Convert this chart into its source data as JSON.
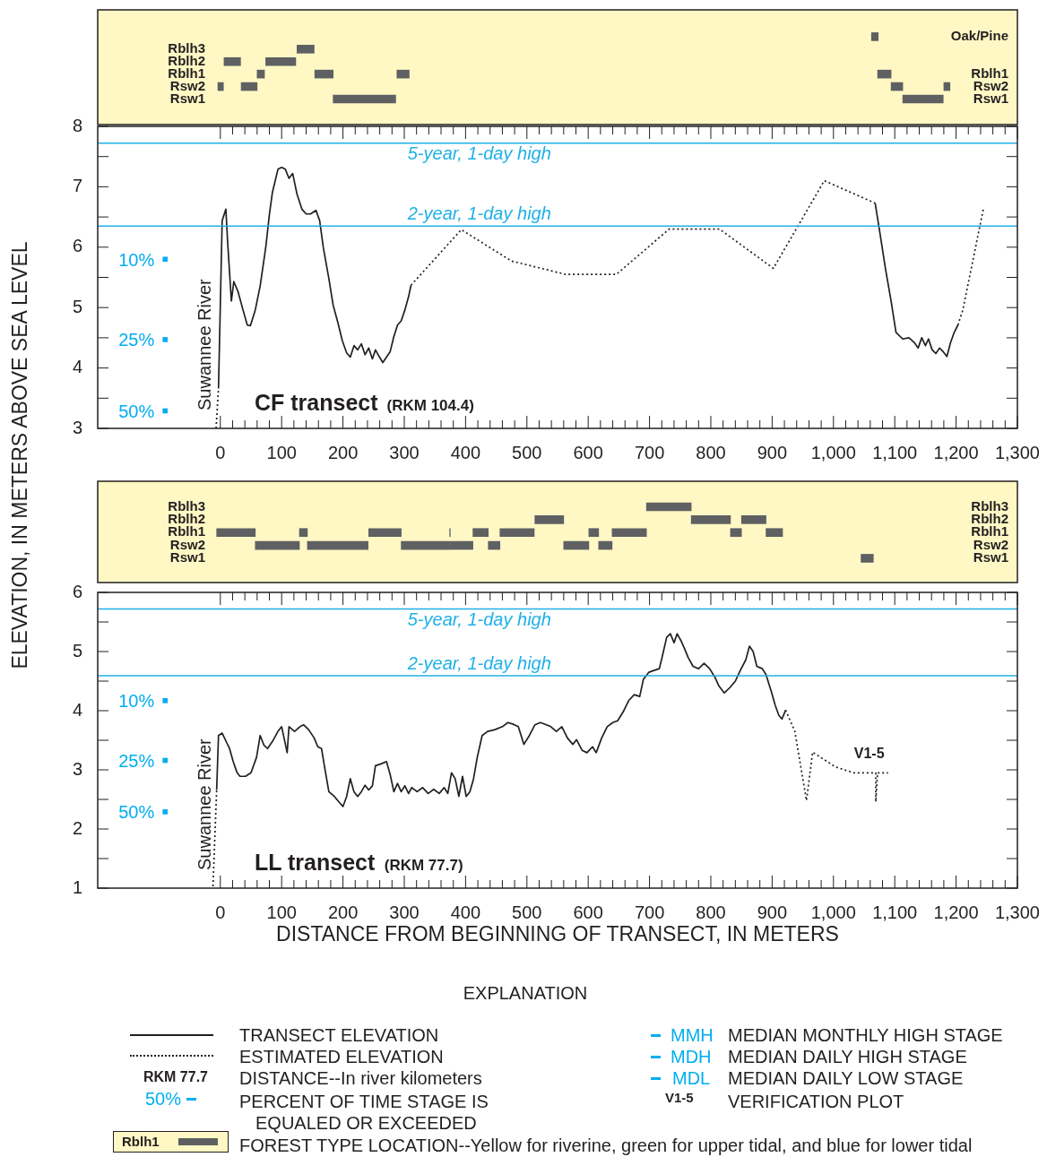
{
  "chart_data": [
    {
      "type": "bar",
      "orientation": "horizontal",
      "categories": [
        null,
        "Rblh3",
        "Rblh2",
        "Rblh1",
        "Rsw2",
        "Rsw1"
      ],
      "y2_categories": [
        "Oak/Pine",
        null,
        null,
        "Rblh1",
        "Rsw2",
        "Rsw1"
      ],
      "series": [
        {
          "color": "#5f6062",
          "base": [
            1062,
            125,
            6,
            60,
            -4,
            184
          ],
          "values": [
            11,
            28,
            27,
            12,
            9,
            102
          ]
        },
        {
          "color": "#5f6062",
          "base": [
            null,
            null,
            74,
            154,
            34,
            1113
          ],
          "values": [
            null,
            null,
            49,
            30,
            26,
            66
          ]
        },
        {
          "color": "#5f6062",
          "base": [
            null,
            null,
            null,
            288,
            1094,
            null
          ],
          "values": [
            null,
            null,
            null,
            20,
            19,
            null
          ]
        },
        {
          "color": "#5f6062",
          "base": [
            null,
            null,
            null,
            1072,
            1180,
            null
          ],
          "values": [
            null,
            null,
            null,
            22,
            10,
            null
          ]
        }
      ],
      "xlim": [
        -200,
        1300
      ],
      "tick_labels": "y"
    },
    {
      "type": "line",
      "title": "CF transect",
      "subtitle": "(RKM 104.4)",
      "ylabel": "ELEVATION, IN METERS ABOVE SEA LEVEL",
      "series": [
        {
          "color": "#231f20",
          "line_style": "dotted",
          "x": [
            -7,
            -3
          ],
          "values": [
            3.0,
            3.66
          ]
        },
        {
          "color": "#231f20",
          "line_style": "solid",
          "x": [
            -3,
            3,
            9,
            12,
            18,
            22,
            29,
            37,
            44,
            49,
            57,
            65,
            74,
            80,
            85,
            94,
            100,
            106,
            112,
            118,
            125,
            133,
            140,
            147,
            156,
            162,
            168,
            177,
            184,
            192,
            199,
            206,
            212,
            218,
            224,
            230,
            236,
            242,
            248,
            253,
            259,
            265,
            271,
            277,
            283,
            289,
            295,
            301,
            307,
            311
          ],
          "values": [
            3.66,
            6.44,
            6.63,
            6.07,
            5.11,
            5.43,
            5.26,
            4.96,
            4.71,
            4.7,
            4.96,
            5.36,
            5.99,
            6.54,
            6.91,
            7.29,
            7.32,
            7.29,
            7.14,
            7.22,
            6.88,
            6.63,
            6.55,
            6.55,
            6.61,
            6.44,
            5.99,
            5.48,
            5.04,
            4.74,
            4.45,
            4.25,
            4.18,
            4.37,
            4.3,
            4.4,
            4.22,
            4.33,
            4.15,
            4.3,
            4.19,
            4.09,
            4.18,
            4.27,
            4.52,
            4.71,
            4.78,
            4.96,
            5.18,
            5.37
          ]
        },
        {
          "color": "#231f20",
          "line_style": "dotted",
          "x": [
            311,
            393,
            475,
            563,
            646,
            732,
            814,
            902,
            985,
            1068
          ],
          "values": [
            5.37,
            6.29,
            5.77,
            5.55,
            5.55,
            6.3,
            6.3,
            5.65,
            7.1,
            6.73
          ]
        },
        {
          "color": "#231f20",
          "line_style": "solid",
          "x": [
            1068,
            1076,
            1085,
            1094,
            1102,
            1113,
            1123,
            1132,
            1138,
            1144,
            1150,
            1155,
            1161,
            1167,
            1173,
            1179,
            1185,
            1191,
            1197,
            1203
          ],
          "values": [
            6.73,
            6.22,
            5.63,
            5.11,
            4.59,
            4.48,
            4.5,
            4.42,
            4.33,
            4.5,
            4.37,
            4.48,
            4.3,
            4.24,
            4.33,
            4.27,
            4.19,
            4.42,
            4.59,
            4.71
          ]
        },
        {
          "color": "#231f20",
          "line_style": "dotted",
          "x": [
            1203,
            1211,
            1245
          ],
          "values": [
            4.71,
            4.96,
            6.66
          ]
        },
        {
          "type": "scatter",
          "name": "10%",
          "color": "#00aeef",
          "x": [
            -90
          ],
          "values": [
            5.8
          ]
        },
        {
          "type": "scatter",
          "name": "25%",
          "color": "#00aeef",
          "x": [
            -90
          ],
          "values": [
            4.47
          ]
        },
        {
          "type": "scatter",
          "name": "50%",
          "color": "#00aeef",
          "x": [
            -90
          ],
          "values": [
            3.29
          ]
        }
      ],
      "ref_lines": [
        {
          "axis": "y",
          "value": 7.72,
          "label": "5-year, 1-day high",
          "color": "#1fb0e6"
        },
        {
          "axis": "y",
          "value": 6.35,
          "label": "2-year, 1-day high",
          "color": "#1fb0e6"
        }
      ],
      "annotations": [
        "Suwannee River"
      ],
      "xlim": [
        -200,
        1300
      ],
      "xticks": [
        0,
        {
          "value": 20,
          "label": null
        },
        {
          "value": 40,
          "label": null
        },
        {
          "value": 60,
          "label": null
        },
        {
          "value": 80,
          "label": null
        },
        100,
        {
          "value": 120,
          "label": null
        },
        {
          "value": 140,
          "label": null
        },
        {
          "value": 160,
          "label": null
        },
        {
          "value": 180,
          "label": null
        },
        200,
        {
          "value": 220,
          "label": null
        },
        {
          "value": 240,
          "label": null
        },
        {
          "value": 260,
          "label": null
        },
        {
          "value": 280,
          "label": null
        },
        300,
        {
          "value": 320,
          "label": null
        },
        {
          "value": 340,
          "label": null
        },
        {
          "value": 360,
          "label": null
        },
        {
          "value": 380,
          "label": null
        },
        400,
        {
          "value": 420,
          "label": null
        },
        {
          "value": 440,
          "label": null
        },
        {
          "value": 460,
          "label": null
        },
        {
          "value": 480,
          "label": null
        },
        500,
        {
          "value": 520,
          "label": null
        },
        {
          "value": 540,
          "label": null
        },
        {
          "value": 560,
          "label": null
        },
        {
          "value": 580,
          "label": null
        },
        600,
        {
          "value": 620,
          "label": null
        },
        {
          "value": 640,
          "label": null
        },
        {
          "value": 660,
          "label": null
        },
        {
          "value": 680,
          "label": null
        },
        700,
        {
          "value": 720,
          "label": null
        },
        {
          "value": 740,
          "label": null
        },
        {
          "value": 760,
          "label": null
        },
        {
          "value": 780,
          "label": null
        },
        800,
        {
          "value": 820,
          "label": null
        },
        {
          "value": 840,
          "label": null
        },
        {
          "value": 860,
          "label": null
        },
        {
          "value": 880,
          "label": null
        },
        900,
        {
          "value": 920,
          "label": null
        },
        {
          "value": 940,
          "label": null
        },
        {
          "value": 960,
          "label": null
        },
        {
          "value": 980,
          "label": null
        },
        {
          "value": 1000,
          "label": "1,000"
        },
        {
          "value": 1020,
          "label": null
        },
        {
          "value": 1040,
          "label": null
        },
        {
          "value": 1060,
          "label": null
        },
        {
          "value": 1080,
          "label": null
        },
        {
          "value": 1100,
          "label": "1,100"
        },
        {
          "value": 1120,
          "label": null
        },
        {
          "value": 1140,
          "label": null
        },
        {
          "value": 1160,
          "label": null
        },
        {
          "value": 1180,
          "label": null
        },
        {
          "value": 1200,
          "label": "1,200"
        },
        {
          "value": 1220,
          "label": null
        },
        {
          "value": 1240,
          "label": null
        },
        {
          "value": 1260,
          "label": null
        },
        {
          "value": 1280,
          "label": null
        },
        {
          "value": 1300,
          "label": "1,300"
        }
      ],
      "ylim": [
        3,
        8
      ],
      "yticks": [
        3,
        {
          "value": 3.5,
          "label": null
        },
        4,
        {
          "value": 4.5,
          "label": null
        },
        5,
        {
          "value": 5.5,
          "label": null
        },
        6,
        {
          "value": 6.5,
          "label": null
        },
        7,
        {
          "value": 7.5,
          "label": null
        },
        8
      ]
    },
    {
      "type": "bar",
      "orientation": "horizontal",
      "categories": [
        "Rblh3",
        "Rblh2",
        "Rblh1",
        "Rsw2",
        "Rsw1"
      ],
      "y2_categories": [
        "Rblh3",
        "Rblh2",
        "Rblh1",
        "Rsw2",
        "Rsw1"
      ],
      "series": [
        {
          "color": "#5f6062",
          "base": [
            695,
            513,
            -6,
            57,
            1045
          ],
          "values": [
            73,
            47,
            63,
            72,
            20
          ]
        },
        {
          "color": "#5f6062",
          "base": [
            null,
            768,
            129,
            142,
            null
          ],
          "values": [
            null,
            64,
            13,
            99,
            null
          ]
        },
        {
          "color": "#5f6062",
          "base": [
            null,
            850,
            242,
            295,
            null
          ],
          "values": [
            null,
            40,
            53,
            79,
            null
          ]
        },
        {
          "color": "#5f6062",
          "base": [
            null,
            null,
            374,
            375,
            null
          ],
          "values": [
            null,
            null,
            1,
            37,
            null
          ]
        },
        {
          "color": "#5f6062",
          "base": [
            null,
            null,
            412,
            437,
            null
          ],
          "values": [
            null,
            null,
            25,
            19,
            null
          ]
        },
        {
          "color": "#5f6062",
          "base": [
            null,
            null,
            456,
            560,
            null
          ],
          "values": [
            null,
            null,
            56,
            41,
            null
          ]
        },
        {
          "color": "#5f6062",
          "base": [
            null,
            null,
            601,
            617,
            null
          ],
          "values": [
            null,
            null,
            16,
            22,
            null
          ]
        },
        {
          "color": "#5f6062",
          "base": [
            null,
            null,
            639,
            null,
            null
          ],
          "values": [
            null,
            null,
            56,
            null,
            null
          ]
        },
        {
          "color": "#5f6062",
          "base": [
            null,
            null,
            832,
            null,
            null
          ],
          "values": [
            null,
            null,
            18,
            null,
            null
          ]
        },
        {
          "color": "#5f6062",
          "base": [
            null,
            null,
            890,
            null,
            null
          ],
          "values": [
            null,
            null,
            27,
            null,
            null
          ]
        }
      ],
      "xlim": [
        -200,
        1300
      ],
      "tick_labels": "y"
    },
    {
      "type": "line",
      "title": "LL transect",
      "subtitle": "(RKM 77.7)",
      "xlabel": "DISTANCE FROM BEGINNING OF TRANSECT, IN METERS",
      "series": [
        {
          "color": "#231f20",
          "line_style": "dotted",
          "x": [
            -12,
            -6
          ],
          "values": [
            1.03,
            2.66
          ]
        },
        {
          "color": "#231f20",
          "line_style": "solid",
          "x": [
            -6,
            -3,
            3,
            15,
            21,
            27,
            32,
            41,
            50,
            59,
            65,
            71,
            77,
            85,
            94,
            100,
            109,
            112,
            121,
            130,
            136,
            144,
            153,
            159,
            165,
            171,
            177,
            186,
            194,
            200,
            206,
            212,
            218,
            224,
            230,
            236,
            242,
            248,
            253,
            262,
            271,
            277,
            283,
            289,
            295,
            301,
            307,
            312,
            321,
            330,
            339,
            348,
            357,
            365,
            371,
            377,
            383,
            389,
            395,
            401,
            407,
            413,
            419,
            427,
            436,
            448,
            460,
            469,
            478,
            486,
            495,
            504,
            513,
            522,
            530,
            539,
            548,
            557,
            566,
            575,
            581,
            590,
            598,
            607,
            613,
            622,
            631,
            640,
            648,
            657,
            666,
            675,
            684,
            690,
            699,
            707,
            716,
            722,
            728,
            734,
            740,
            745,
            751,
            757,
            763,
            771,
            780,
            789,
            798,
            807,
            813,
            822,
            831,
            840,
            848,
            857,
            863,
            869,
            875,
            884,
            890,
            899,
            905,
            911,
            916,
            922
          ],
          "values": [
            2.66,
            3.58,
            3.62,
            3.36,
            3.14,
            2.96,
            2.89,
            2.89,
            2.95,
            3.21,
            3.58,
            3.42,
            3.36,
            3.48,
            3.65,
            3.73,
            3.29,
            3.73,
            3.65,
            3.73,
            3.76,
            3.68,
            3.54,
            3.39,
            3.36,
            2.99,
            2.63,
            2.55,
            2.45,
            2.38,
            2.55,
            2.85,
            2.63,
            2.55,
            2.63,
            2.74,
            2.66,
            2.73,
            3.07,
            3.1,
            3.14,
            2.92,
            2.63,
            2.77,
            2.63,
            2.73,
            2.6,
            2.7,
            2.63,
            2.7,
            2.6,
            2.67,
            2.6,
            2.7,
            2.6,
            2.95,
            2.85,
            2.55,
            2.89,
            2.55,
            2.63,
            2.85,
            3.21,
            3.58,
            3.65,
            3.68,
            3.73,
            3.8,
            3.77,
            3.73,
            3.43,
            3.58,
            3.76,
            3.8,
            3.77,
            3.73,
            3.65,
            3.73,
            3.54,
            3.43,
            3.51,
            3.33,
            3.29,
            3.39,
            3.29,
            3.54,
            3.73,
            3.8,
            3.83,
            3.98,
            4.17,
            4.27,
            4.24,
            4.53,
            4.65,
            4.68,
            4.71,
            4.97,
            5.24,
            5.3,
            5.15,
            5.3,
            5.19,
            5.05,
            4.9,
            4.75,
            4.71,
            4.8,
            4.71,
            4.56,
            4.42,
            4.3,
            4.39,
            4.5,
            4.68,
            4.86,
            5.09,
            5.0,
            4.75,
            4.71,
            4.61,
            4.31,
            4.09,
            3.92,
            3.86,
            4.01
          ]
        },
        {
          "name": "V1-5",
          "color": "#231f20",
          "line_style": "dotted",
          "x": [
            922,
            937,
            956,
            966,
            1003,
            1033,
            1069,
            1069,
            1072,
            1089
          ],
          "values": [
            4.01,
            3.65,
            2.48,
            3.3,
            3.05,
            2.95,
            2.95,
            2.46,
            2.95,
            2.95
          ]
        },
        {
          "type": "scatter",
          "name": "10%",
          "color": "#00aeef",
          "x": [
            -90
          ],
          "values": [
            4.17
          ]
        },
        {
          "type": "scatter",
          "name": "25%",
          "color": "#00aeef",
          "x": [
            -90
          ],
          "values": [
            3.16
          ]
        },
        {
          "type": "scatter",
          "name": "50%",
          "color": "#00aeef",
          "x": [
            -90
          ],
          "values": [
            2.29
          ]
        }
      ],
      "ref_lines": [
        {
          "axis": "y",
          "value": 5.72,
          "label": "5-year, 1-day high",
          "color": "#1fb0e6"
        },
        {
          "axis": "y",
          "value": 4.59,
          "label": "2-year, 1-day high",
          "color": "#1fb0e6"
        }
      ],
      "annotations": [
        "Suwannee River"
      ],
      "xlim": [
        -200,
        1300
      ],
      "xticks": [
        0,
        {
          "value": 20,
          "label": null
        },
        {
          "value": 40,
          "label": null
        },
        {
          "value": 60,
          "label": null
        },
        {
          "value": 80,
          "label": null
        },
        100,
        {
          "value": 120,
          "label": null
        },
        {
          "value": 140,
          "label": null
        },
        {
          "value": 160,
          "label": null
        },
        {
          "value": 180,
          "label": null
        },
        200,
        {
          "value": 220,
          "label": null
        },
        {
          "value": 240,
          "label": null
        },
        {
          "value": 260,
          "label": null
        },
        {
          "value": 280,
          "label": null
        },
        300,
        {
          "value": 320,
          "label": null
        },
        {
          "value": 340,
          "label": null
        },
        {
          "value": 360,
          "label": null
        },
        {
          "value": 380,
          "label": null
        },
        400,
        {
          "value": 420,
          "label": null
        },
        {
          "value": 440,
          "label": null
        },
        {
          "value": 460,
          "label": null
        },
        {
          "value": 480,
          "label": null
        },
        500,
        {
          "value": 520,
          "label": null
        },
        {
          "value": 540,
          "label": null
        },
        {
          "value": 560,
          "label": null
        },
        {
          "value": 580,
          "label": null
        },
        600,
        {
          "value": 620,
          "label": null
        },
        {
          "value": 640,
          "label": null
        },
        {
          "value": 660,
          "label": null
        },
        {
          "value": 680,
          "label": null
        },
        700,
        {
          "value": 720,
          "label": null
        },
        {
          "value": 740,
          "label": null
        },
        {
          "value": 760,
          "label": null
        },
        {
          "value": 780,
          "label": null
        },
        800,
        {
          "value": 820,
          "label": null
        },
        {
          "value": 840,
          "label": null
        },
        {
          "value": 860,
          "label": null
        },
        {
          "value": 880,
          "label": null
        },
        900,
        {
          "value": 920,
          "label": null
        },
        {
          "value": 940,
          "label": null
        },
        {
          "value": 960,
          "label": null
        },
        {
          "value": 980,
          "label": null
        },
        {
          "value": 1000,
          "label": "1,000"
        },
        {
          "value": 1020,
          "label": null
        },
        {
          "value": 1040,
          "label": null
        },
        {
          "value": 1060,
          "label": null
        },
        {
          "value": 1080,
          "label": null
        },
        {
          "value": 1100,
          "label": "1,100"
        },
        {
          "value": 1120,
          "label": null
        },
        {
          "value": 1140,
          "label": null
        },
        {
          "value": 1160,
          "label": null
        },
        {
          "value": 1180,
          "label": null
        },
        {
          "value": 1200,
          "label": "1,200"
        },
        {
          "value": 1220,
          "label": null
        },
        {
          "value": 1240,
          "label": null
        },
        {
          "value": 1260,
          "label": null
        },
        {
          "value": 1280,
          "label": null
        },
        {
          "value": 1300,
          "label": "1,300"
        }
      ],
      "ylim": [
        1,
        6
      ],
      "yticks": [
        1,
        {
          "value": 1.5,
          "label": null
        },
        2,
        {
          "value": 2.5,
          "label": null
        },
        3,
        {
          "value": 3.5,
          "label": null
        },
        4,
        {
          "value": 4.5,
          "label": null
        },
        5,
        {
          "value": 5.5,
          "label": null
        },
        6
      ]
    },
    {
      "type": "other",
      "title": "EXPLANATION",
      "annotations": [
        "TRANSECT ELEVATION",
        "ESTIMATED ELEVATION",
        "RKM 77.7",
        "DISTANCE--In river kilometers",
        "50%",
        "PERCENT OF TIME STAGE IS EQUALED OR EXCEEDED",
        "Rblh1",
        "FOREST TYPE LOCATION--Yellow for riverine, green for upper tidal, and blue for lower tidal",
        "MMH",
        "MEDIAN MONTHLY HIGH STAGE",
        "MDH",
        "MEDIAN DAILY HIGH STAGE",
        "MDL",
        "MEDIAN DAILY LOW STAGE",
        "V1-5",
        "VERIFICATION PLOT"
      ]
    }
  ]
}
